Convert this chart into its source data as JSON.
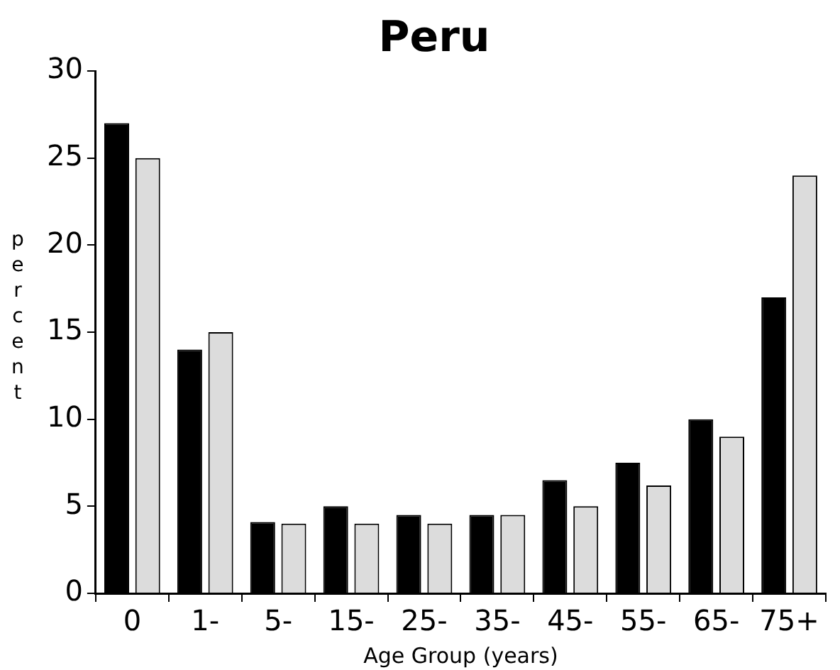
{
  "chart_data": {
    "type": "bar",
    "title": "Peru",
    "xlabel": "Age Group (years)",
    "ylabel": "percent",
    "categories": [
      "0",
      "1-",
      "5-",
      "15-",
      "25-",
      "35-",
      "45-",
      "55-",
      "65-",
      "75+"
    ],
    "series": [
      {
        "color": "#000000",
        "values": [
          27,
          14,
          4.1,
          5,
          4.5,
          4.5,
          6.5,
          7.5,
          10,
          17
        ]
      },
      {
        "color": "#dcdcdc",
        "values": [
          25,
          15,
          4,
          4,
          4,
          4.5,
          5,
          6.2,
          9,
          24
        ]
      }
    ],
    "ylim": [
      0,
      30
    ],
    "yticks": [
      0,
      5,
      10,
      15,
      20,
      25,
      30
    ],
    "grid": false,
    "legend": false
  }
}
